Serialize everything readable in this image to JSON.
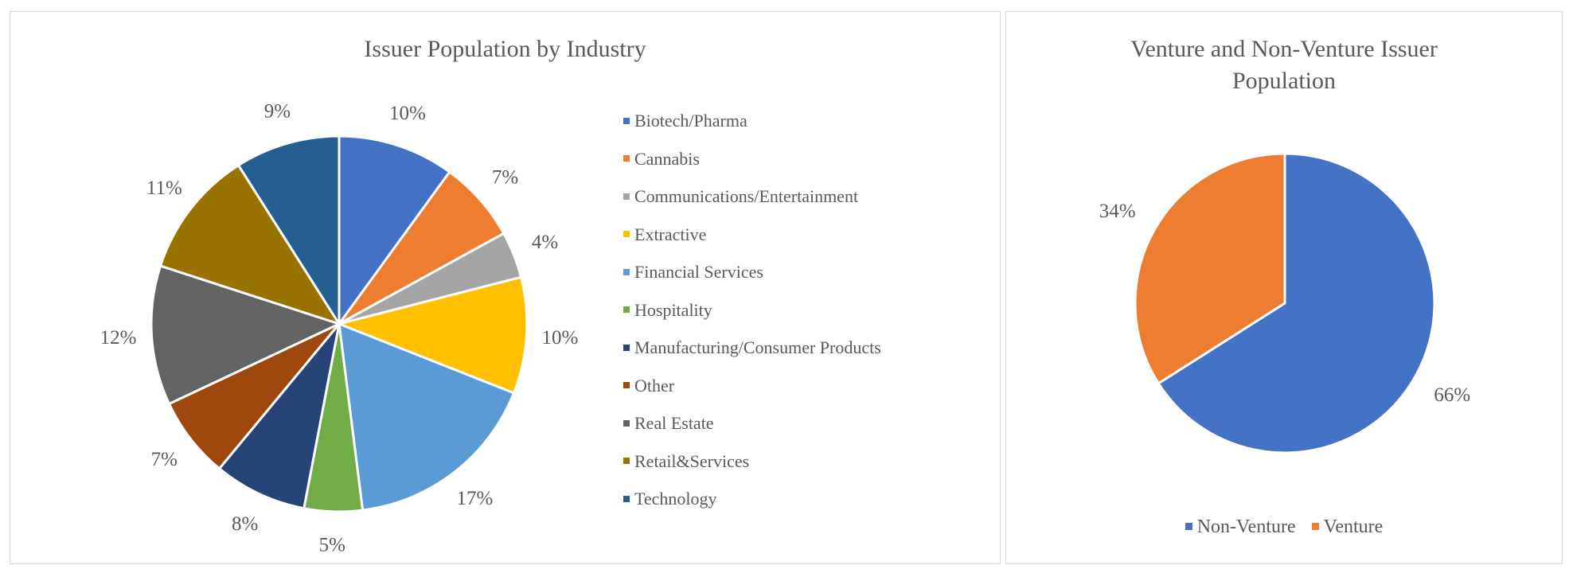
{
  "chart_data": [
    {
      "type": "pie",
      "title": "Issuer Population by Industry",
      "categories": [
        "Biotech/Pharma",
        "Cannabis",
        "Communications/Entertainment",
        "Extractive",
        "Financial Services",
        "Hospitality",
        "Manufacturing/Consumer Products",
        "Other",
        "Real Estate",
        "Retail&Services",
        "Technology"
      ],
      "values": [
        10,
        7,
        4,
        10,
        17,
        5,
        8,
        7,
        12,
        11,
        9
      ],
      "labels": [
        "10%",
        "7%",
        "4%",
        "10%",
        "17%",
        "5%",
        "8%",
        "7%",
        "12%",
        "11%",
        "9%"
      ],
      "colors": [
        "#4472C4",
        "#ED7D31",
        "#A5A5A5",
        "#FFC000",
        "#5B9BD5",
        "#70AD47",
        "#264478",
        "#9E480E",
        "#636363",
        "#997300",
        "#255E91"
      ],
      "legend_position": "right"
    },
    {
      "type": "pie",
      "title": "Venture and Non-Venture Issuer Population",
      "title_lines": [
        "Venture and Non-Venture Issuer",
        "Population"
      ],
      "categories": [
        "Non-Venture",
        "Venture"
      ],
      "values": [
        66,
        34
      ],
      "labels": [
        "66%",
        "34%"
      ],
      "colors": [
        "#4472C4",
        "#ED7D31"
      ],
      "legend_position": "bottom"
    }
  ]
}
